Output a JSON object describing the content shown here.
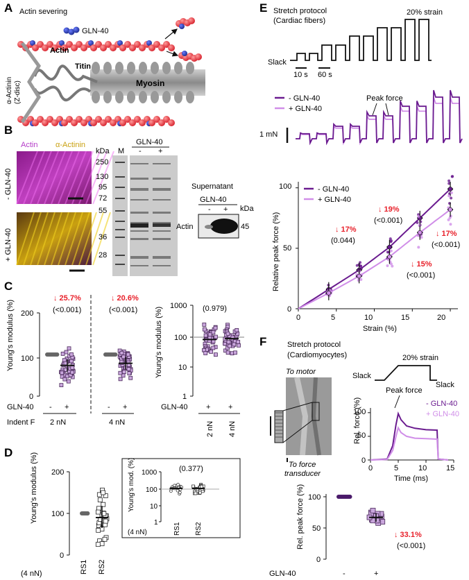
{
  "panels": {
    "A": {
      "letter": "A",
      "title": "Actin severing",
      "gln": "GLN-40",
      "actin": "Actin",
      "titin": "Titin",
      "myosin": "Myosin",
      "zdisc1": "α-Actinin",
      "zdisc2": "(Z-disc)"
    },
    "B": {
      "letter": "B",
      "actin": "Actin",
      "actinin": "α-Actinin",
      "row1": "- GLN-40",
      "row2": "+ GLN-40",
      "gel_title": "GLN-40",
      "kda": "kDa",
      "m": "M",
      "minus": "-",
      "plus": "+",
      "markers": [
        "250",
        "130",
        "95",
        "72",
        "55",
        "36",
        "28"
      ],
      "supernatant": "Supernatant",
      "sup_gln": "GLN-40",
      "sup_actin": "Actin",
      "sup_45": "45"
    },
    "C": {
      "letter": "C",
      "ylabel": "Young's modulus (%)",
      "yticks": [
        "0",
        "100",
        "200"
      ],
      "ann1_pct": "↓ 25.7%",
      "ann1_p": "(<0.001)",
      "ann2_pct": "↓ 20.6%",
      "ann2_p": "(<0.001)",
      "gln_label": "GLN-40",
      "minus": "-",
      "plus": "+",
      "indent_label": "Indent F",
      "f1": "2 nN",
      "f2": "4 nN",
      "log_ylabel": "Young's modulus (%)",
      "log_p": "(0.979)",
      "log_ticks": [
        "1",
        "10",
        "100",
        "1000"
      ]
    },
    "D": {
      "letter": "D",
      "ylabel": "Young's modulus (%)",
      "yticks": [
        "0",
        "100",
        "200"
      ],
      "rs1": "RS1",
      "rs2": "RS2",
      "indent": "(4 nN)",
      "inset_ylabel": "Young's mod. (%)",
      "inset_p": "(0.377)",
      "inset_ticks": [
        "1",
        "10",
        "100",
        "1000"
      ]
    },
    "E": {
      "letter": "E",
      "protocol1": "Stretch protocol",
      "protocol2": "(Cardiac fibers)",
      "strain": "20% strain",
      "slack": "Slack",
      "t10": "10 s",
      "t60": "60 s",
      "legend_minus": "- GLN-40",
      "legend_plus": "+ GLN-40",
      "peak": "Peak force",
      "scale": "1 mN",
      "ylabel": "Relative peak force (%)",
      "xlabel": "Strain (%)",
      "xticks": [
        "0",
        "5",
        "10",
        "15",
        "20"
      ],
      "yticks": [
        "0",
        "50",
        "100"
      ],
      "ann8_pct": "↓ 17%",
      "ann8_p": "(0.044)",
      "ann12_pct": "↓ 19%",
      "ann12_p": "(<0.001)",
      "ann16_pct": "↓ 15%",
      "ann16_p": "(<0.001)",
      "ann20_pct": "↓ 17%",
      "ann20_p": "(<0.001)"
    },
    "F": {
      "letter": "F",
      "protocol1": "Stretch protocol",
      "protocol2": "(Cardiomyocytes)",
      "strain": "20% strain",
      "slack_l": "Slack",
      "slack_r": "Slack",
      "to_motor": "To motor",
      "to_force1": "To force",
      "to_force2": "transducer",
      "peak": "Peak force",
      "legend_minus": "- GLN-40",
      "legend_plus": "+ GLN-40",
      "ylabel": "Rel. force (%)",
      "xlabel": "Time (ms)",
      "xticks": [
        "0",
        "5",
        "10",
        "15"
      ],
      "yticks": [
        "0",
        "50",
        "100"
      ],
      "bar_ylabel": "Rel. peak force (%)",
      "bar_yticks": [
        "0",
        "50",
        "100"
      ],
      "ann_pct": "↓ 33.1%",
      "ann_p": "(<0.001)",
      "gln_label": "GLN-40",
      "minus": "-",
      "plus": "+"
    }
  },
  "colors": {
    "dark_purple": "#6a1b8f",
    "light_purple": "#d08ee8",
    "red": "#e8202a",
    "square_fill": "#c9a6dc"
  },
  "chart_data": [
    {
      "type": "scatter",
      "panel": "E",
      "x": [
        0,
        4,
        8,
        12,
        16,
        20
      ],
      "series": [
        {
          "name": "- GLN-40",
          "values": [
            0,
            16,
            32,
            51,
            75,
            99
          ]
        },
        {
          "name": "+ GLN-40",
          "values": [
            0,
            13,
            27,
            43,
            63,
            82
          ]
        }
      ],
      "xlim": [
        0,
        21
      ],
      "ylim": [
        0,
        105
      ],
      "xlabel": "Strain (%)",
      "ylabel": "Relative peak force (%)"
    },
    {
      "type": "line",
      "panel": "F",
      "series": [
        {
          "name": "- GLN-40",
          "x": [
            0,
            3,
            4,
            4.6,
            5,
            5.5,
            6.5,
            8,
            10,
            12
          ],
          "values": [
            0,
            2,
            30,
            75,
            98,
            85,
            72,
            67,
            64,
            63
          ]
        },
        {
          "name": "+ GLN-40",
          "x": [
            0,
            3,
            4,
            4.6,
            5,
            5.5,
            6.5,
            8,
            10,
            12
          ],
          "values": [
            0,
            1,
            20,
            50,
            68,
            58,
            50,
            46,
            45,
            44
          ]
        }
      ],
      "xlim": [
        0,
        15
      ],
      "ylim": [
        0,
        110
      ],
      "xlabel": "Time (ms)",
      "ylabel": "Rel. force (%)"
    },
    {
      "type": "scatter",
      "panel": "F-bar",
      "categories": [
        "-",
        "+"
      ],
      "values": [
        100,
        67
      ],
      "ylim": [
        0,
        105
      ],
      "ylabel": "Rel. peak force (%)"
    }
  ]
}
